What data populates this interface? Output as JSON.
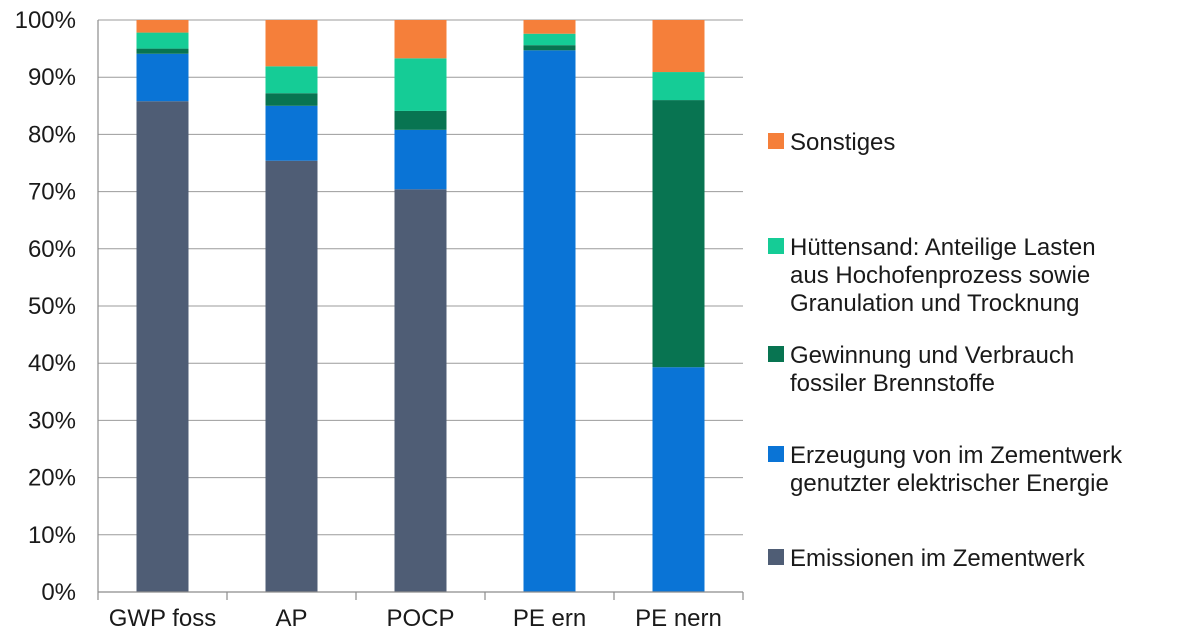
{
  "chart_data": {
    "type": "bar",
    "stacked": true,
    "normalized_percent": true,
    "categories": [
      "GWP foss",
      "AP",
      "POCP",
      "PE ern",
      "PE nern"
    ],
    "ylim": [
      0,
      100
    ],
    "yticks": [
      "0%",
      "10%",
      "20%",
      "30%",
      "40%",
      "50%",
      "60%",
      "70%",
      "80%",
      "90%",
      "100%"
    ],
    "grid": true,
    "legend_position": "right",
    "series": [
      {
        "name": "Emissionen im Zementwerk",
        "color": "#4f5d75",
        "values": [
          85.8,
          75.4,
          70.4,
          0.0,
          0.0
        ]
      },
      {
        "name": "Erzeugung von im Zementwerk genutzter elektrischer Energie",
        "color": "#0a74d6",
        "values": [
          8.3,
          9.6,
          10.4,
          94.7,
          39.3
        ]
      },
      {
        "name": "Gewinnung und Verbrauch fossiler Brennstoffe",
        "color": "#087451",
        "values": [
          0.9,
          2.2,
          3.3,
          0.9,
          46.7
        ]
      },
      {
        "name": "Hüttensand: Anteilige Lasten aus Hochofenprozess sowie Granulation und Trocknung",
        "color": "#15cc96",
        "values": [
          2.8,
          4.7,
          9.2,
          2.0,
          4.9
        ]
      },
      {
        "name": "Sonstiges",
        "color": "#f57f3a",
        "values": [
          2.2,
          8.1,
          6.7,
          2.4,
          9.1
        ]
      }
    ],
    "legend_lines": [
      [
        "Sonstiges"
      ],
      [
        "Hüttensand: Anteilige Lasten",
        "aus Hochofenprozess sowie",
        "Granulation und Trocknung"
      ],
      [
        "Gewinnung und Verbrauch",
        "fossiler Brennstoffe"
      ],
      [
        "Erzeugung von im Zementwerk",
        "genutzter elektrischer Energie"
      ],
      [
        "Emissionen im Zementwerk"
      ]
    ]
  }
}
